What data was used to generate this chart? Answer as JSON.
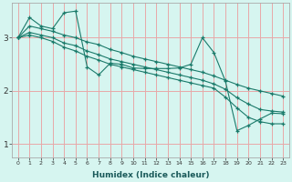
{
  "xlabel": "Humidex (Indice chaleur)",
  "xlim": [
    -0.5,
    23.5
  ],
  "ylim": [
    0.75,
    3.65
  ],
  "xticks": [
    0,
    1,
    2,
    3,
    4,
    5,
    6,
    7,
    8,
    9,
    10,
    11,
    12,
    13,
    14,
    15,
    16,
    17,
    18,
    19,
    20,
    21,
    22,
    23
  ],
  "yticks": [
    1,
    2,
    3
  ],
  "bg_color": "#d6f5f0",
  "grid_color": "#e8a8a8",
  "line_color": "#1a7a6a",
  "line1_x": [
    0,
    1,
    2,
    3,
    4,
    5,
    6,
    7,
    8,
    9,
    10,
    11,
    12,
    13,
    14,
    15,
    16,
    17,
    18,
    19,
    20,
    21,
    22,
    23
  ],
  "line1_y": [
    3.0,
    3.38,
    3.22,
    3.17,
    3.47,
    3.5,
    2.45,
    2.3,
    2.52,
    2.5,
    2.43,
    2.42,
    2.42,
    2.42,
    2.43,
    2.5,
    3.0,
    2.72,
    2.18,
    1.25,
    1.35,
    1.47,
    1.58,
    1.57
  ],
  "line2_x": [
    0,
    1,
    2,
    3,
    4,
    5,
    6,
    7,
    8,
    9,
    10,
    11,
    12,
    13,
    14,
    15,
    16,
    17,
    18,
    19,
    20,
    21,
    22,
    23
  ],
  "line2_y": [
    3.0,
    3.22,
    3.17,
    3.12,
    3.05,
    3.0,
    2.92,
    2.87,
    2.78,
    2.72,
    2.65,
    2.6,
    2.55,
    2.5,
    2.45,
    2.4,
    2.35,
    2.28,
    2.2,
    2.12,
    2.05,
    2.0,
    1.95,
    1.9
  ],
  "line3_x": [
    0,
    1,
    2,
    3,
    4,
    5,
    6,
    7,
    8,
    9,
    10,
    11,
    12,
    13,
    14,
    15,
    16,
    17,
    18,
    19,
    20,
    21,
    22,
    23
  ],
  "line3_y": [
    3.0,
    3.1,
    3.05,
    3.0,
    2.9,
    2.85,
    2.75,
    2.68,
    2.6,
    2.55,
    2.5,
    2.45,
    2.4,
    2.35,
    2.3,
    2.25,
    2.2,
    2.13,
    2.03,
    1.87,
    1.75,
    1.65,
    1.62,
    1.6
  ],
  "line4_x": [
    0,
    1,
    2,
    3,
    4,
    5,
    6,
    7,
    8,
    9,
    10,
    11,
    12,
    13,
    14,
    15,
    16,
    17,
    18,
    19,
    20,
    21,
    22,
    23
  ],
  "line4_y": [
    3.0,
    3.05,
    3.0,
    2.93,
    2.82,
    2.75,
    2.65,
    2.58,
    2.5,
    2.45,
    2.4,
    2.35,
    2.3,
    2.25,
    2.2,
    2.15,
    2.1,
    2.05,
    1.88,
    1.68,
    1.5,
    1.42,
    1.38,
    1.38
  ]
}
